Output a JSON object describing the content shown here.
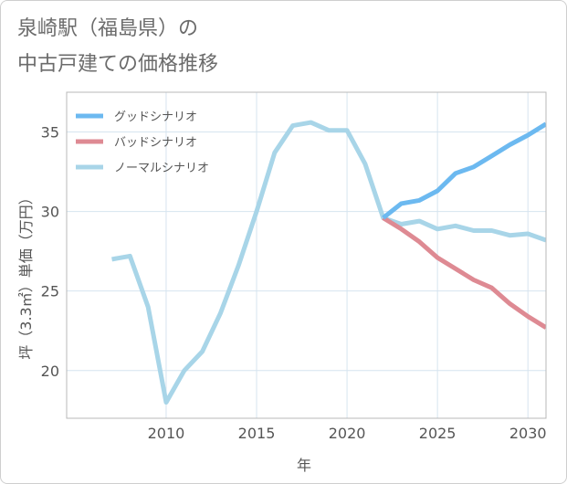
{
  "title": {
    "line1": "泉崎駅（福島県）の",
    "line2": "中古戸建ての価格推移"
  },
  "chart_data": {
    "type": "line",
    "title": "泉崎駅（福島県）の中古戸建ての価格推移",
    "xlabel": "年",
    "ylabel": "坪（3.3㎡）単価（万円）",
    "xlim": [
      2004.5,
      2031
    ],
    "ylim": [
      17,
      37.5
    ],
    "xticks": [
      2010,
      2015,
      2020,
      2025,
      2030
    ],
    "yticks": [
      20,
      25,
      30,
      35
    ],
    "xtick_labels": [
      "2010",
      "2015",
      "2020",
      "2025",
      "2030"
    ],
    "ytick_labels": [
      "20",
      "25",
      "30",
      "35"
    ],
    "grid": true,
    "legend_position": "top-left",
    "series": [
      {
        "name": "グッドシナリオ",
        "color": "#6cb9f0",
        "x": [
          2022,
          2023,
          2024,
          2025,
          2026,
          2027,
          2028,
          2029,
          2030,
          2031
        ],
        "values": [
          29.6,
          30.5,
          30.7,
          31.3,
          32.4,
          32.8,
          33.5,
          34.2,
          34.8,
          35.5
        ]
      },
      {
        "name": "バッドシナリオ",
        "color": "#de8a93",
        "x": [
          2022,
          2023,
          2024,
          2025,
          2026,
          2027,
          2028,
          2029,
          2030,
          2031
        ],
        "values": [
          29.6,
          28.9,
          28.1,
          27.1,
          26.4,
          25.7,
          25.2,
          24.2,
          23.4,
          22.7
        ]
      },
      {
        "name": "ノーマルシナリオ",
        "color": "#a8d5e8",
        "x": [
          2007,
          2008,
          2009,
          2010,
          2011,
          2012,
          2013,
          2014,
          2015,
          2016,
          2017,
          2018,
          2019,
          2020,
          2021,
          2022,
          2023,
          2024,
          2025,
          2026,
          2027,
          2028,
          2029,
          2030,
          2031
        ],
        "values": [
          27.0,
          27.2,
          24.0,
          18.0,
          20.0,
          21.2,
          23.6,
          26.6,
          30.0,
          33.7,
          35.4,
          35.6,
          35.1,
          35.1,
          33.0,
          29.6,
          29.2,
          29.4,
          28.9,
          29.1,
          28.8,
          28.8,
          28.5,
          28.6,
          28.2
        ]
      }
    ]
  }
}
